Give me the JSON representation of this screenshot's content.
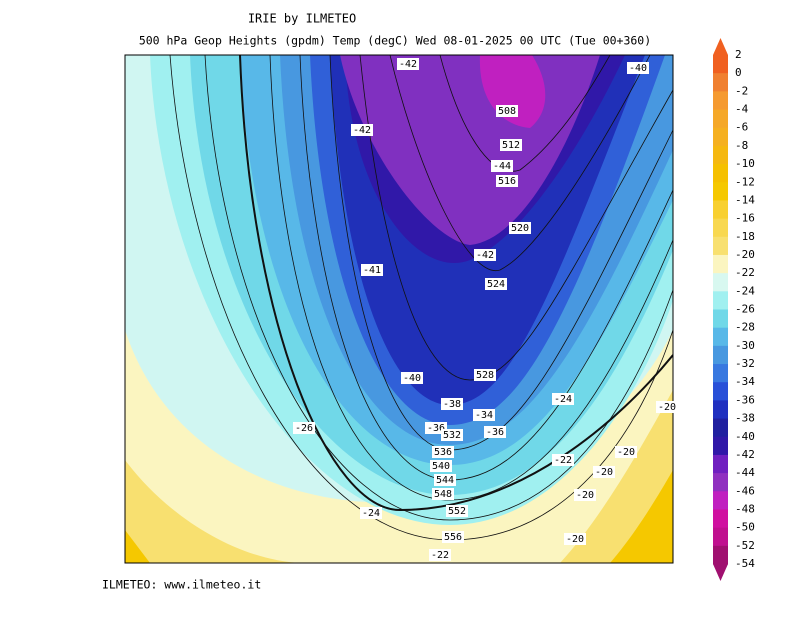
{
  "header": {
    "title": "IRIE by ILMETEO",
    "subtitle": "500 hPa Geop Heights (gpdm)  Temp (degC)    Wed 08-01-2025 00 UTC (Tue 00+360)"
  },
  "footer": "ILMETEO: www.ilmeteo.it",
  "colorbar": {
    "labels": [
      "2",
      "0",
      "-2",
      "-4",
      "-6",
      "-8",
      "-10",
      "-12",
      "-14",
      "-16",
      "-18",
      "-20",
      "-22",
      "-24",
      "-26",
      "-28",
      "-30",
      "-32",
      "-34",
      "-36",
      "-38",
      "-40",
      "-42",
      "-44",
      "-46",
      "-48",
      "-50",
      "-52",
      "-54"
    ]
  },
  "map": {
    "labels": [
      "-42",
      "-40",
      "-42",
      "508",
      "512",
      "-44",
      "516",
      "520",
      "-42",
      "-41",
      "524",
      "-40",
      "528",
      "-38",
      "-24",
      "-20",
      "-34",
      "-36",
      "532",
      "-36",
      "-26",
      "536",
      "-20",
      "-22",
      "540",
      "-20",
      "544",
      "548",
      "-20",
      "552",
      "-24",
      "-20",
      "556",
      "-22"
    ]
  }
}
